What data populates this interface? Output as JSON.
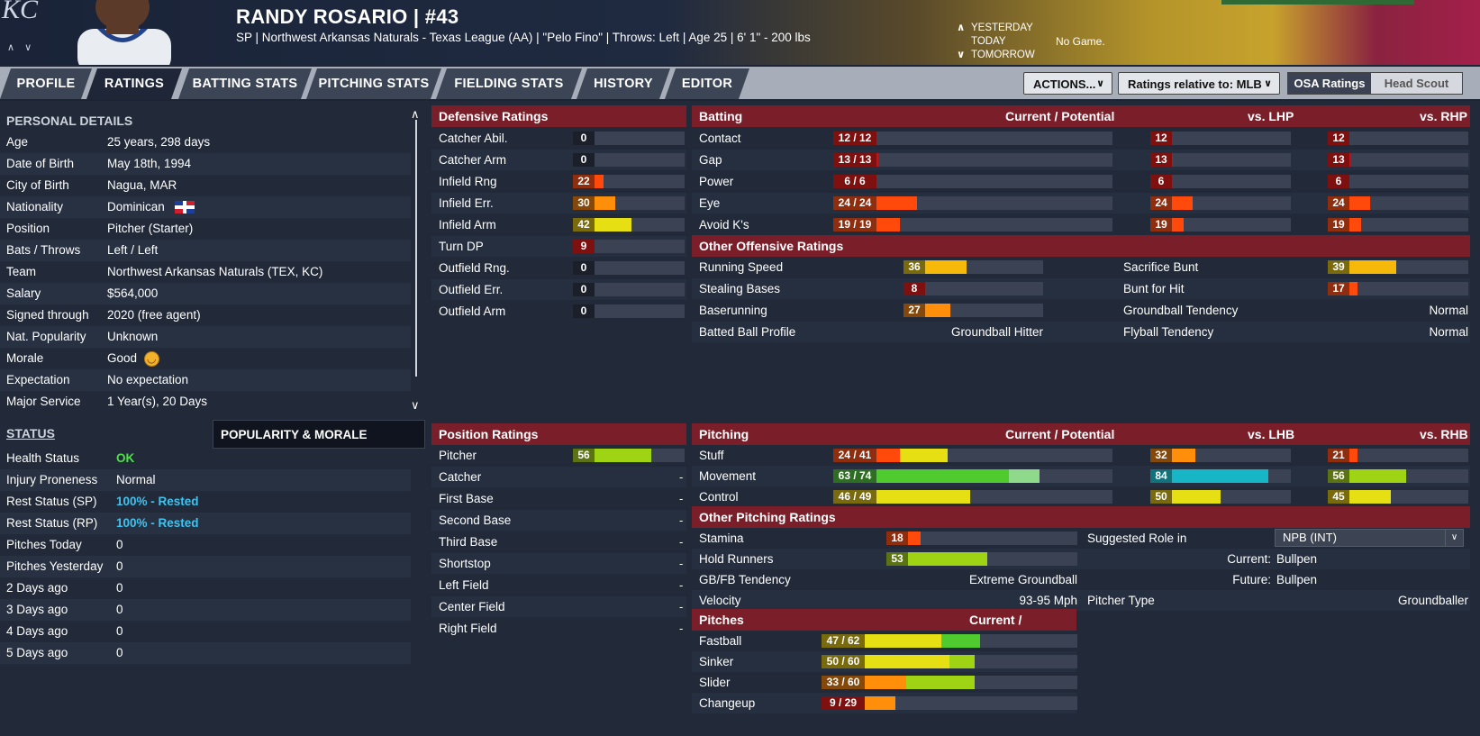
{
  "header": {
    "logo": "KC",
    "name": "RANDY ROSARIO  |  #43",
    "subtitle": "SP | Northwest Arkansas Naturals - Texas League (AA)  |  \"Pelo Fino\" | Throws: Left  |  Age 25  |  6' 1\" - 200 lbs",
    "day_nav": [
      {
        "arrow": "∧",
        "label": "YESTERDAY"
      },
      {
        "arrow": "",
        "label": "TODAY"
      },
      {
        "arrow": "∨",
        "label": "TOMORROW"
      }
    ],
    "game_status": "No Game."
  },
  "tabs": [
    "PROFILE",
    "RATINGS",
    "BATTING STATS",
    "PITCHING STATS",
    "FIELDING STATS",
    "HISTORY",
    "EDITOR"
  ],
  "active_tab": "RATINGS",
  "toolbar": {
    "actions_label": "ACTIONS...",
    "relative_label": "Ratings relative to: MLB",
    "osa_label": "OSA Ratings",
    "scout_label": "Head Scout"
  },
  "personal": {
    "title": "PERSONAL DETAILS",
    "rows": [
      {
        "k": "Age",
        "v": "25 years, 298 days"
      },
      {
        "k": "Date of Birth",
        "v": "May 18th, 1994"
      },
      {
        "k": "City of Birth",
        "v": "Nagua, MAR"
      },
      {
        "k": "Nationality",
        "v": "Dominican"
      },
      {
        "k": "Position",
        "v": "Pitcher (Starter)"
      },
      {
        "k": "Bats / Throws",
        "v": "Left / Left"
      },
      {
        "k": "Team",
        "v": "Northwest Arkansas Naturals (TEX, KC)"
      },
      {
        "k": "Salary",
        "v": "$564,000"
      },
      {
        "k": "Signed through",
        "v": "2020 (free agent)"
      },
      {
        "k": "Nat. Popularity",
        "v": "Unknown"
      },
      {
        "k": "Morale",
        "v": "Good"
      },
      {
        "k": "Expectation",
        "v": "No expectation"
      },
      {
        "k": "Major Service",
        "v": "1 Year(s), 20 Days"
      }
    ]
  },
  "status": {
    "title": "STATUS",
    "pop_tab": "POPULARITY & MORALE",
    "rows": [
      {
        "k": "Health Status",
        "v": "OK",
        "color": "#4fe04a"
      },
      {
        "k": "Injury Proneness",
        "v": "Normal",
        "color": "#ffffff"
      },
      {
        "k": "Rest Status (SP)",
        "v": "100% - Rested",
        "color": "#3fc3f0"
      },
      {
        "k": "Rest Status (RP)",
        "v": "100% - Rested",
        "color": "#3fc3f0"
      },
      {
        "k": "Pitches Today",
        "v": "0",
        "color": "#ffffff"
      },
      {
        "k": "Pitches Yesterday",
        "v": "0",
        "color": "#ffffff"
      },
      {
        "k": "2 Days ago",
        "v": "0",
        "color": "#ffffff"
      },
      {
        "k": "3 Days ago",
        "v": "0",
        "color": "#ffffff"
      },
      {
        "k": "4 Days ago",
        "v": "0",
        "color": "#ffffff"
      },
      {
        "k": "5 Days ago",
        "v": "0",
        "color": "#ffffff"
      }
    ]
  },
  "defensive": {
    "title": "Defensive Ratings",
    "rows": [
      {
        "label": "Catcher Abil.",
        "value": 0
      },
      {
        "label": "Catcher Arm",
        "value": 0
      },
      {
        "label": "Infield Rng",
        "value": 22
      },
      {
        "label": "Infield Err.",
        "value": 30
      },
      {
        "label": "Infield Arm",
        "value": 42
      },
      {
        "label": "Turn DP",
        "value": 9
      },
      {
        "label": "Outfield Rng.",
        "value": 0
      },
      {
        "label": "Outfield Err.",
        "value": 0
      },
      {
        "label": "Outfield Arm",
        "value": 0
      }
    ]
  },
  "position_ratings": {
    "title": "Position Ratings",
    "rows": [
      {
        "label": "Pitcher",
        "value": "56"
      },
      {
        "label": "Catcher",
        "value": "-"
      },
      {
        "label": "First Base",
        "value": "-"
      },
      {
        "label": "Second Base",
        "value": "-"
      },
      {
        "label": "Third Base",
        "value": "-"
      },
      {
        "label": "Shortstop",
        "value": "-"
      },
      {
        "label": "Left Field",
        "value": "-"
      },
      {
        "label": "Center Field",
        "value": "-"
      },
      {
        "label": "Right Field",
        "value": "-"
      }
    ]
  },
  "batting": {
    "title": "Batting",
    "col_cp": "Current / Potential",
    "col_l": "vs. LHP",
    "col_r": "vs. RHP",
    "rows": [
      {
        "label": "Contact",
        "cur": 12,
        "pot": 12,
        "vl": 12,
        "vr": 12
      },
      {
        "label": "Gap",
        "cur": 13,
        "pot": 13,
        "vl": 13,
        "vr": 13
      },
      {
        "label": "Power",
        "cur": 6,
        "pot": 6,
        "vl": 6,
        "vr": 6
      },
      {
        "label": "Eye",
        "cur": 24,
        "pot": 24,
        "vl": 24,
        "vr": 24
      },
      {
        "label": "Avoid K's",
        "cur": 19,
        "pot": 19,
        "vl": 19,
        "vr": 19
      }
    ],
    "other_title": "Other Offensive Ratings",
    "other_left": [
      {
        "label": "Running Speed",
        "value": 36
      },
      {
        "label": "Stealing Bases",
        "value": 8
      },
      {
        "label": "Baserunning",
        "value": 27
      }
    ],
    "batted_ball_label": "Batted Ball Profile",
    "batted_ball_value": "Groundball Hitter",
    "other_right": [
      {
        "label": "Sacrifice Bunt",
        "value": 39
      },
      {
        "label": "Bunt for Hit",
        "value": 17
      }
    ],
    "gb_tend_label": "Groundball Tendency",
    "gb_tend_value": "Normal",
    "fb_tend_label": "Flyball Tendency",
    "fb_tend_value": "Normal"
  },
  "pitching": {
    "title": "Pitching",
    "col_cp": "Current / Potential",
    "col_l": "vs. LHB",
    "col_r": "vs. RHB",
    "rows": [
      {
        "label": "Stuff",
        "cur": 24,
        "pot": 41,
        "vl": 32,
        "vr": 21
      },
      {
        "label": "Movement",
        "cur": 63,
        "pot": 74,
        "vl": 84,
        "vr": 56
      },
      {
        "label": "Control",
        "cur": 46,
        "pot": 49,
        "vl": 50,
        "vr": 45
      }
    ],
    "other_title": "Other Pitching Ratings",
    "stamina_label": "Stamina",
    "stamina": 18,
    "hold_label": "Hold Runners",
    "hold": 53,
    "gbfb_label": "GB/FB Tendency",
    "gbfb_value": "Extreme Groundball",
    "velo_label": "Velocity",
    "velo_value": "93-95 Mph",
    "role_label": "Suggested Role in",
    "role_dropdown": "NPB (INT)",
    "current_label": "Current:",
    "current_value": "Bullpen",
    "future_label": "Future:",
    "future_value": "Bullpen",
    "ptype_label": "Pitcher Type",
    "ptype_value": "Groundballer",
    "pitches_title": "Pitches",
    "pitches_col": "Current / Potential",
    "pitches": [
      {
        "label": "Fastball",
        "cur": 47,
        "pot": 62
      },
      {
        "label": "Sinker",
        "cur": 50,
        "pot": 60
      },
      {
        "label": "Slider",
        "cur": 33,
        "pot": 60
      },
      {
        "label": "Changeup",
        "cur": 9,
        "pot": 29
      }
    ]
  },
  "colors": {
    "panel_header": "#7a1f2a",
    "accent_tab_active": "#1e2637",
    "ok_green": "#4fe04a",
    "rested_blue": "#3fc3f0"
  }
}
